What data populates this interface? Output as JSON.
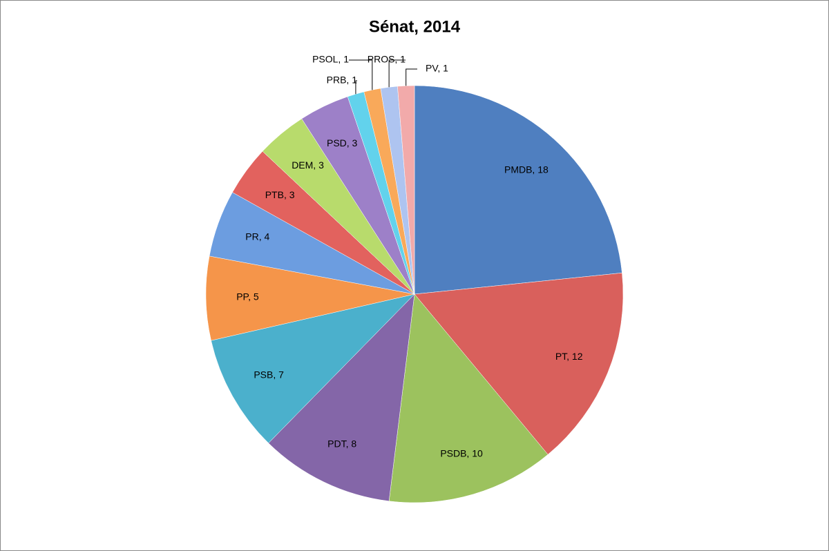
{
  "chart_data": {
    "type": "pie",
    "title": "Sénat, 2014",
    "values": [
      18,
      12,
      10,
      8,
      7,
      5,
      4,
      3,
      3,
      3,
      1,
      1,
      1,
      1
    ],
    "value_labels": [
      "PMDB, 18",
      "PT, 12",
      "PSDB, 10",
      "PDT, 8",
      "PSB, 7",
      "PP, 5",
      "PR, 4",
      "PTB, 3",
      "DEM, 3",
      "PSD, 3",
      "PRB, 1",
      "PSOL, 1",
      "PROS, 1",
      "PV, 1"
    ],
    "colors": [
      "#4f7fc0",
      "#d9605c",
      "#9cc25e",
      "#8466a8",
      "#4bb0cc",
      "#f5954a",
      "#6c9de0",
      "#e2625e",
      "#b8db6c",
      "#9d80c8",
      "#62d2ec",
      "#f9a95a",
      "#aec4f0",
      "#f2aaaa"
    ]
  }
}
